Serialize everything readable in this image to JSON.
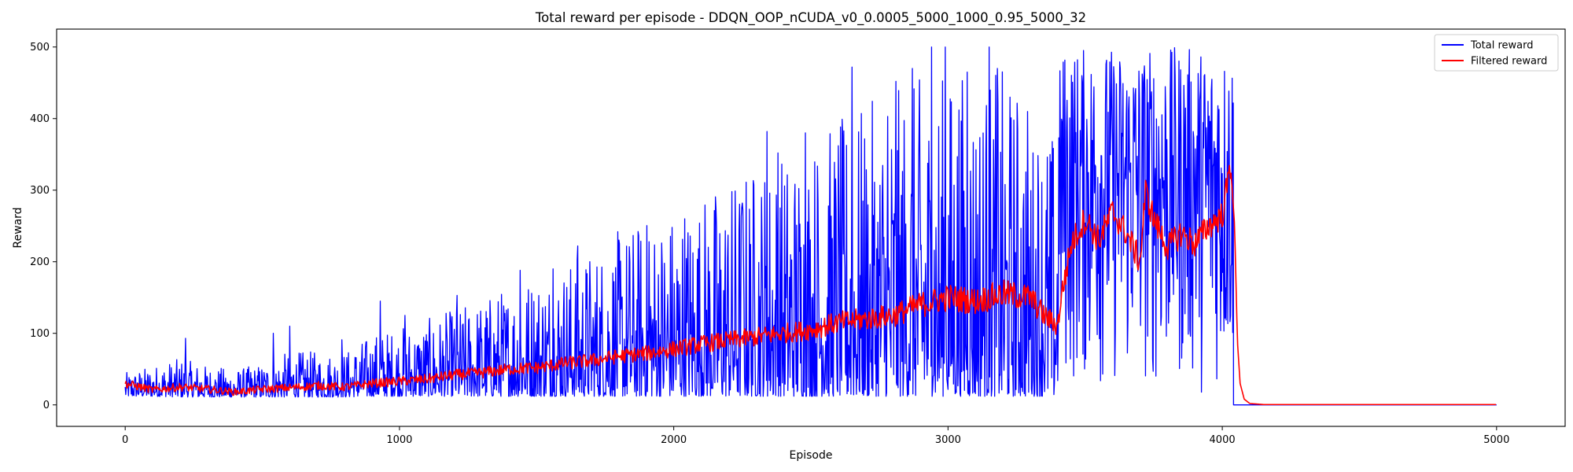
{
  "chart_data": {
    "type": "line",
    "title": "Total reward per episode - DDQN_OOP_nCUDA_v0_0.0005_5000_1000_0.95_5000_32",
    "xlabel": "Episode",
    "ylabel": "Reward",
    "xlim": [
      -250,
      5250
    ],
    "ylim": [
      -30,
      525
    ],
    "xticks": [
      0,
      1000,
      2000,
      3000,
      4000,
      5000
    ],
    "yticks": [
      0,
      100,
      200,
      300,
      400,
      500
    ],
    "grid": false,
    "legend_position": "top-right",
    "series": [
      {
        "name": "Total reward",
        "color": "#0000ff",
        "style": "noisy",
        "x": [
          0,
          100,
          200,
          300,
          400,
          500,
          600,
          700,
          800,
          900,
          1000,
          1100,
          1200,
          1300,
          1400,
          1500,
          1600,
          1700,
          1800,
          1900,
          2000,
          2100,
          2200,
          2300,
          2400,
          2500,
          2600,
          2700,
          2800,
          2900,
          3000,
          3100,
          3200,
          3300,
          3400,
          3410,
          3500,
          3600,
          3700,
          3800,
          3900,
          4000,
          4040,
          4041,
          5000
        ],
        "low": [
          12,
          12,
          11,
          11,
          11,
          11,
          11,
          11,
          11,
          12,
          12,
          12,
          12,
          12,
          12,
          12,
          12,
          12,
          12,
          12,
          12,
          12,
          12,
          12,
          12,
          12,
          12,
          12,
          12,
          12,
          12,
          12,
          12,
          12,
          12,
          12,
          12,
          12,
          12,
          12,
          12,
          12,
          12,
          0,
          0
        ],
        "high": [
          45,
          55,
          65,
          55,
          50,
          58,
          75,
          75,
          75,
          100,
          110,
          120,
          135,
          150,
          170,
          190,
          205,
          220,
          245,
          265,
          280,
          300,
          320,
          345,
          360,
          380,
          400,
          420,
          440,
          460,
          470,
          475,
          470,
          440,
          380,
          500,
          500,
          500,
          500,
          500,
          500,
          500,
          500,
          0,
          0
        ],
        "spikes": [
          [
            220,
            93
          ],
          [
            540,
            100
          ],
          [
            600,
            110
          ],
          [
            790,
            91
          ],
          [
            930,
            145
          ],
          [
            1020,
            125
          ],
          [
            1210,
            153
          ],
          [
            1440,
            188
          ],
          [
            1560,
            190
          ],
          [
            1650,
            222
          ],
          [
            1910,
            228
          ],
          [
            2040,
            260
          ],
          [
            2250,
            282
          ],
          [
            2340,
            382
          ],
          [
            2380,
            352
          ],
          [
            2480,
            380
          ],
          [
            2600,
            362
          ],
          [
            2650,
            472
          ],
          [
            2780,
            403
          ],
          [
            2810,
            452
          ],
          [
            2870,
            470
          ],
          [
            2940,
            500
          ],
          [
            2990,
            500
          ],
          [
            3040,
            412
          ],
          [
            3070,
            465
          ],
          [
            3150,
            500
          ],
          [
            3180,
            470
          ],
          [
            3230,
            401
          ],
          [
            3310,
            352
          ]
        ]
      },
      {
        "name": "Filtered reward",
        "color": "#ff0000",
        "style": "smooth",
        "x": [
          0,
          100,
          200,
          300,
          400,
          500,
          600,
          700,
          800,
          900,
          1000,
          1100,
          1200,
          1300,
          1400,
          1500,
          1600,
          1700,
          1800,
          1900,
          2000,
          2100,
          2200,
          2300,
          2400,
          2500,
          2600,
          2700,
          2800,
          2900,
          3000,
          3100,
          3200,
          3300,
          3350,
          3400,
          3410,
          3450,
          3500,
          3550,
          3600,
          3650,
          3700,
          3720,
          3750,
          3800,
          3850,
          3900,
          3950,
          4000,
          4030,
          4045,
          4055,
          4065,
          4080,
          4100,
          4150,
          5000
        ],
        "y": [
          30,
          21,
          25,
          22,
          18,
          22,
          24,
          27,
          25,
          30,
          33,
          36,
          42,
          45,
          50,
          52,
          58,
          62,
          68,
          72,
          78,
          85,
          90,
          95,
          100,
          105,
          115,
          120,
          125,
          140,
          150,
          145,
          155,
          150,
          125,
          110,
          145,
          225,
          260,
          230,
          270,
          240,
          200,
          298,
          260,
          220,
          240,
          225,
          250,
          265,
          335,
          250,
          90,
          30,
          8,
          2,
          0.5,
          0.5
        ]
      }
    ]
  }
}
